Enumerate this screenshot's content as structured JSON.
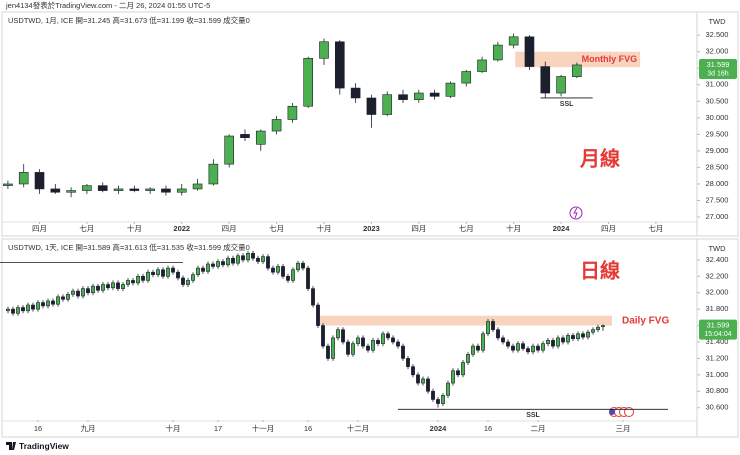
{
  "header": "jen4134發表於TradingView.com - 二月 26, 2024 01:55 UTC-5",
  "footer": "TradingView",
  "chart_data": [
    {
      "type": "candlestick",
      "title": "USDTWD, 1月, ICE  開=31.245  高=31.673  低=31.199  收=31.599  成交量0",
      "label": "月線",
      "axis_title": "TWD",
      "up_color": "#4caf50",
      "down_color": "#1c1f2e",
      "wick_color": "#1c1f2e",
      "open": [
        27.95,
        28.0,
        28.35,
        27.85,
        27.75,
        27.8,
        27.95,
        27.8,
        27.85,
        27.8,
        27.85,
        27.75,
        27.85,
        28.0,
        28.6,
        29.5,
        29.2,
        29.6,
        29.95,
        30.35,
        31.8,
        32.3,
        30.9,
        30.6,
        30.1,
        30.7,
        30.55,
        30.75,
        30.65,
        31.05,
        31.4,
        31.75,
        32.2,
        32.45,
        31.55,
        30.75,
        31.245
      ],
      "high": [
        28.1,
        28.6,
        28.45,
        28.0,
        27.9,
        28.0,
        28.05,
        27.95,
        27.95,
        27.9,
        27.95,
        28.0,
        28.15,
        28.75,
        29.5,
        29.65,
        29.65,
        30.05,
        30.45,
        31.85,
        32.4,
        32.35,
        31.05,
        30.7,
        30.8,
        30.85,
        30.85,
        30.85,
        31.1,
        31.45,
        31.85,
        32.3,
        32.55,
        32.5,
        31.7,
        31.3,
        31.673
      ],
      "low": [
        27.85,
        27.9,
        27.7,
        27.7,
        27.6,
        27.7,
        27.75,
        27.7,
        27.75,
        27.7,
        27.65,
        27.65,
        27.8,
        27.95,
        28.5,
        29.3,
        29.0,
        29.5,
        29.85,
        30.3,
        31.6,
        30.7,
        30.45,
        29.7,
        30.05,
        30.45,
        30.45,
        30.55,
        30.6,
        30.95,
        31.35,
        31.7,
        32.1,
        31.45,
        30.6,
        30.65,
        31.199
      ],
      "close": [
        28.0,
        28.35,
        27.85,
        27.75,
        27.8,
        27.95,
        27.8,
        27.85,
        27.8,
        27.85,
        27.75,
        27.85,
        28.0,
        28.6,
        29.45,
        29.4,
        29.6,
        29.95,
        30.35,
        31.8,
        32.3,
        30.9,
        30.6,
        30.1,
        30.7,
        30.55,
        30.75,
        30.65,
        31.05,
        31.4,
        31.75,
        32.2,
        32.45,
        31.55,
        30.75,
        31.25,
        31.599
      ],
      "xlim": [
        -0.5,
        43.6
      ],
      "xticks": [
        {
          "value": 2,
          "label": "四月"
        },
        {
          "value": 5,
          "label": "七月"
        },
        {
          "value": 8,
          "label": "十月"
        },
        {
          "value": 11,
          "label": "2022"
        },
        {
          "value": 14,
          "label": "四月"
        },
        {
          "value": 17,
          "label": "七月"
        },
        {
          "value": 20,
          "label": "十月"
        },
        {
          "value": 23,
          "label": "2023"
        },
        {
          "value": 26,
          "label": "四月"
        },
        {
          "value": 29,
          "label": "七月"
        },
        {
          "value": 32,
          "label": "十月"
        },
        {
          "value": 35,
          "label": "2024"
        },
        {
          "value": 38,
          "label": "四月"
        },
        {
          "value": 41,
          "label": "七月"
        }
      ],
      "ylim": [
        26.85,
        33.2
      ],
      "yticks": [
        {
          "value": 27,
          "label": "27.000"
        },
        {
          "value": 27.5,
          "label": "27.500"
        },
        {
          "value": 28,
          "label": "28.000"
        },
        {
          "value": 28.5,
          "label": "28.500"
        },
        {
          "value": 29,
          "label": "29.000"
        },
        {
          "value": 29.5,
          "label": "29.500"
        },
        {
          "value": 30,
          "label": "30.000"
        },
        {
          "value": 30.5,
          "label": "30.500"
        },
        {
          "value": 31,
          "label": "31.000"
        },
        {
          "value": 31.5,
          "label": "31.500"
        },
        {
          "value": 32,
          "label": "32.000"
        },
        {
          "value": 32.5,
          "label": "32.500"
        }
      ],
      "last_price": 31.599,
      "countdown": "3d 16h",
      "last_color": "#4caf50",
      "fvg": {
        "label": "Monthly FVG",
        "from": 32.0,
        "to": 31.53,
        "start": 32.1,
        "end": 40,
        "color": "#f7cdb3",
        "text_color": "#e53935"
      },
      "ssl": {
        "label": "SSL",
        "value": 30.6,
        "start": 33.7,
        "end": 37
      }
    },
    {
      "type": "candlestick",
      "title": "USDTWD, 1天, ICE  開=31.589  高=31.613  低=31.535  收=31.599  成交量0",
      "label": "日線",
      "axis_title": "TWD",
      "up_color": "#4caf50",
      "down_color": "#1c1f2e",
      "wick_color": "#1c1f2e",
      "open": [
        31.78,
        31.8,
        31.75,
        31.82,
        31.78,
        31.85,
        31.8,
        31.88,
        31.84,
        31.9,
        31.86,
        31.95,
        31.92,
        31.98,
        32.02,
        31.96,
        32.05,
        32.0,
        32.08,
        32.03,
        32.1,
        32.06,
        32.12,
        32.05,
        32.1,
        32.15,
        32.12,
        32.2,
        32.15,
        32.25,
        32.22,
        32.28,
        32.2,
        32.3,
        32.25,
        32.18,
        32.1,
        32.15,
        32.22,
        32.3,
        32.26,
        32.35,
        32.32,
        32.38,
        32.34,
        32.42,
        32.36,
        32.45,
        32.4,
        32.48,
        32.42,
        32.38,
        32.44,
        32.3,
        32.25,
        32.32,
        32.2,
        32.15,
        32.28,
        32.36,
        32.3,
        32.05,
        31.85,
        31.6,
        31.35,
        31.2,
        31.45,
        31.55,
        31.4,
        31.25,
        31.38,
        31.45,
        31.35,
        31.3,
        31.42,
        31.38,
        31.5,
        31.45,
        31.4,
        31.35,
        31.2,
        31.1,
        31.0,
        30.9,
        30.95,
        30.8,
        30.7,
        30.65,
        30.75,
        30.9,
        31.05,
        31.0,
        31.15,
        31.25,
        31.35,
        31.3,
        31.5,
        31.65,
        31.55,
        31.45,
        31.4,
        31.35,
        31.3,
        31.38,
        31.32,
        31.28,
        31.35,
        31.3,
        31.38,
        31.42,
        31.35,
        31.45,
        31.4,
        31.48,
        31.44,
        31.5,
        31.46,
        31.52,
        31.55,
        31.589
      ],
      "high": [
        31.83,
        31.83,
        31.85,
        31.85,
        31.88,
        31.88,
        31.91,
        31.91,
        31.93,
        31.93,
        31.98,
        31.98,
        32.01,
        32.05,
        32.05,
        32.08,
        32.08,
        32.11,
        32.11,
        32.13,
        32.13,
        32.15,
        32.15,
        32.13,
        32.18,
        32.18,
        32.23,
        32.23,
        32.28,
        32.28,
        32.31,
        32.31,
        32.33,
        32.33,
        32.28,
        32.21,
        32.18,
        32.25,
        32.33,
        32.33,
        32.38,
        32.38,
        32.41,
        32.41,
        32.45,
        32.45,
        32.48,
        32.48,
        32.51,
        32.51,
        32.45,
        32.47,
        32.47,
        32.33,
        32.35,
        32.35,
        32.23,
        32.31,
        32.39,
        32.39,
        32.33,
        32.08,
        31.88,
        31.63,
        31.38,
        31.48,
        31.58,
        31.58,
        31.43,
        31.41,
        31.48,
        31.48,
        31.38,
        31.45,
        31.45,
        31.53,
        31.53,
        31.48,
        31.43,
        31.38,
        31.23,
        31.13,
        31.03,
        30.98,
        30.98,
        30.83,
        30.73,
        30.78,
        30.93,
        31.08,
        31.08,
        31.18,
        31.28,
        31.38,
        31.38,
        31.53,
        31.68,
        31.68,
        31.58,
        31.48,
        31.43,
        31.38,
        31.41,
        31.41,
        31.35,
        31.38,
        31.38,
        31.41,
        31.45,
        31.45,
        31.48,
        31.48,
        31.51,
        31.51,
        31.53,
        31.53,
        31.55,
        31.58,
        31.61,
        31.613
      ],
      "low": [
        31.75,
        31.72,
        31.72,
        31.75,
        31.75,
        31.77,
        31.77,
        31.81,
        31.81,
        31.83,
        31.83,
        31.89,
        31.89,
        31.95,
        31.93,
        31.93,
        31.97,
        31.97,
        32.0,
        32.0,
        32.03,
        32.03,
        32.02,
        32.02,
        32.07,
        32.09,
        32.09,
        32.12,
        32.12,
        32.19,
        32.19,
        32.17,
        32.17,
        32.22,
        32.15,
        32.07,
        32.07,
        32.12,
        32.19,
        32.23,
        32.23,
        32.29,
        32.29,
        32.31,
        32.31,
        32.33,
        32.33,
        32.37,
        32.37,
        32.39,
        32.35,
        32.35,
        32.27,
        32.22,
        32.22,
        32.17,
        32.12,
        32.12,
        32.25,
        32.27,
        32.02,
        31.82,
        31.57,
        31.32,
        31.17,
        31.17,
        31.42,
        31.37,
        31.22,
        31.22,
        31.35,
        31.32,
        31.27,
        31.27,
        31.35,
        31.35,
        31.42,
        31.37,
        31.32,
        31.17,
        31.07,
        30.97,
        30.87,
        30.87,
        30.77,
        30.67,
        30.6,
        30.62,
        30.72,
        30.87,
        30.97,
        30.97,
        31.12,
        31.22,
        31.27,
        31.27,
        31.47,
        31.52,
        31.42,
        31.37,
        31.32,
        31.27,
        31.27,
        31.29,
        31.25,
        31.25,
        31.27,
        31.27,
        31.35,
        31.32,
        31.32,
        31.37,
        31.37,
        31.41,
        31.41,
        31.43,
        31.43,
        31.49,
        31.52,
        31.535
      ],
      "close": [
        31.8,
        31.75,
        31.82,
        31.78,
        31.85,
        31.8,
        31.88,
        31.84,
        31.9,
        31.86,
        31.95,
        31.92,
        31.98,
        32.02,
        31.96,
        32.05,
        32.0,
        32.08,
        32.03,
        32.1,
        32.06,
        32.12,
        32.05,
        32.1,
        32.15,
        32.12,
        32.2,
        32.15,
        32.25,
        32.22,
        32.28,
        32.2,
        32.3,
        32.25,
        32.18,
        32.1,
        32.15,
        32.22,
        32.3,
        32.26,
        32.35,
        32.32,
        32.38,
        32.34,
        32.42,
        32.36,
        32.45,
        32.4,
        32.48,
        32.42,
        32.38,
        32.44,
        32.3,
        32.25,
        32.32,
        32.2,
        32.15,
        32.28,
        32.36,
        32.3,
        32.05,
        31.85,
        31.6,
        31.35,
        31.2,
        31.45,
        31.55,
        31.4,
        31.25,
        31.38,
        31.45,
        31.35,
        31.3,
        31.42,
        31.38,
        31.5,
        31.45,
        31.4,
        31.35,
        31.2,
        31.1,
        31.0,
        30.9,
        30.95,
        30.8,
        30.7,
        30.65,
        30.75,
        30.9,
        31.05,
        31.0,
        31.15,
        31.25,
        31.35,
        31.3,
        31.5,
        31.65,
        31.55,
        31.45,
        31.4,
        31.35,
        31.3,
        31.38,
        31.32,
        31.28,
        31.35,
        31.3,
        31.38,
        31.42,
        31.35,
        31.45,
        31.4,
        31.48,
        31.44,
        31.5,
        31.46,
        31.52,
        31.55,
        31.58,
        31.599
      ],
      "xlim": [
        -1.6,
        137.8
      ],
      "xticks": [
        {
          "value": 6,
          "label": "16"
        },
        {
          "value": 16,
          "label": "九月"
        },
        {
          "value": 33,
          "label": "十月"
        },
        {
          "value": 42,
          "label": "17"
        },
        {
          "value": 51,
          "label": "十一月"
        },
        {
          "value": 60,
          "label": "16"
        },
        {
          "value": 70,
          "label": "十二月"
        },
        {
          "value": 86,
          "label": "2024"
        },
        {
          "value": 96,
          "label": "16"
        },
        {
          "value": 106,
          "label": "二月"
        },
        {
          "value": 123,
          "label": "三月"
        }
      ],
      "ylim": [
        30.45,
        32.63
      ],
      "yticks": [
        {
          "value": 30.6,
          "label": "30.600"
        },
        {
          "value": 30.8,
          "label": "30.800"
        },
        {
          "value": 31,
          "label": "31.000"
        },
        {
          "value": 31.2,
          "label": "31.200"
        },
        {
          "value": 31.4,
          "label": "31.400"
        },
        {
          "value": 31.6,
          "label": "31.600"
        },
        {
          "value": 31.8,
          "label": "31.800"
        },
        {
          "value": 32,
          "label": "32.000"
        },
        {
          "value": 32.2,
          "label": "32.200"
        },
        {
          "value": 32.4,
          "label": "32.400"
        }
      ],
      "last_price": 31.599,
      "countdown": "15:04:04",
      "last_color": "#4caf50",
      "fvg": {
        "label": "Daily FVG",
        "from": 31.72,
        "to": 31.6,
        "start": 62.4,
        "end": 120.8,
        "color": "#f7cdb3",
        "text_color": "#e53935"
      },
      "ssl": {
        "label": "SSL",
        "value": 30.58,
        "start": 78,
        "end": 132
      },
      "levels": [
        {
          "value": 32.37,
          "start": -1.6,
          "end": 35
        }
      ]
    }
  ]
}
